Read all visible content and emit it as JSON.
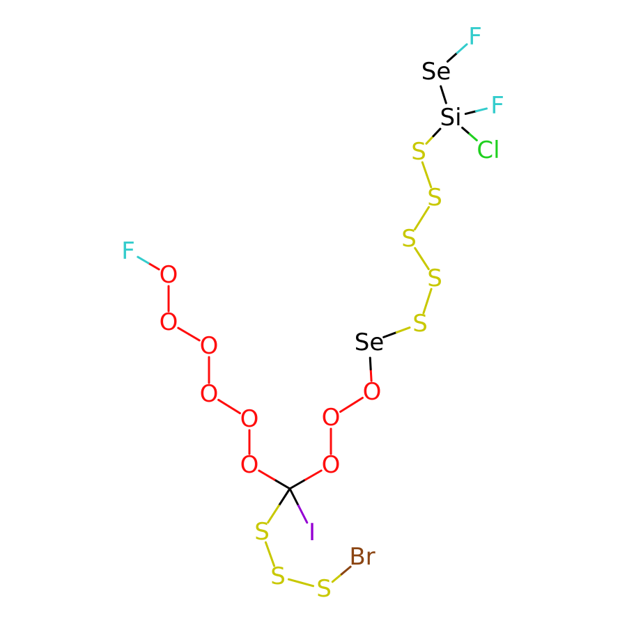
{
  "molecule": {
    "colors": {
      "C": "#000000",
      "O": "#ff0d0d",
      "S": "#c8c800",
      "Se": "#000000",
      "Si": "#000000",
      "F": "#33cccc",
      "Cl": "#1fd01f",
      "Br": "#8b4513",
      "I": "#9400d3"
    },
    "atoms": [
      {
        "id": "C1",
        "el": "C",
        "label": ""
      },
      {
        "id": "O1",
        "el": "O",
        "label": "O"
      },
      {
        "id": "O2",
        "el": "O",
        "label": "O"
      },
      {
        "id": "O3",
        "el": "O",
        "label": "O"
      },
      {
        "id": "O4",
        "el": "O",
        "label": "O"
      },
      {
        "id": "O5",
        "el": "O",
        "label": "O"
      },
      {
        "id": "O6",
        "el": "O",
        "label": "O"
      },
      {
        "id": "F1",
        "el": "F",
        "label": "F"
      },
      {
        "id": "O7",
        "el": "O",
        "label": "O"
      },
      {
        "id": "O8",
        "el": "O",
        "label": "O"
      },
      {
        "id": "O9",
        "el": "O",
        "label": "O"
      },
      {
        "id": "Se1",
        "el": "Se",
        "label": "Se"
      },
      {
        "id": "S1",
        "el": "S",
        "label": "S"
      },
      {
        "id": "S2",
        "el": "S",
        "label": "S"
      },
      {
        "id": "S3",
        "el": "S",
        "label": "S"
      },
      {
        "id": "S4",
        "el": "S",
        "label": "S"
      },
      {
        "id": "S5",
        "el": "S",
        "label": "S"
      },
      {
        "id": "Si1",
        "el": "Si",
        "label": "Si"
      },
      {
        "id": "F2",
        "el": "F",
        "label": "F"
      },
      {
        "id": "Cl1",
        "el": "Cl",
        "label": "Cl"
      },
      {
        "id": "Se2",
        "el": "Se",
        "label": "Se"
      },
      {
        "id": "F3",
        "el": "F",
        "label": "F"
      },
      {
        "id": "I1",
        "el": "I",
        "label": "I"
      },
      {
        "id": "S6",
        "el": "S",
        "label": "S"
      },
      {
        "id": "S7",
        "el": "S",
        "label": "S"
      },
      {
        "id": "S8",
        "el": "S",
        "label": "S"
      },
      {
        "id": "Br1",
        "el": "Br",
        "label": "Br"
      }
    ],
    "bonds": [
      [
        "C1",
        "O1"
      ],
      [
        "O1",
        "O2"
      ],
      [
        "O2",
        "O3"
      ],
      [
        "O3",
        "O4"
      ],
      [
        "O4",
        "O5"
      ],
      [
        "O5",
        "O6"
      ],
      [
        "O6",
        "F1"
      ],
      [
        "C1",
        "O7"
      ],
      [
        "O7",
        "O8"
      ],
      [
        "O8",
        "O9"
      ],
      [
        "O9",
        "Se1"
      ],
      [
        "Se1",
        "S1"
      ],
      [
        "S1",
        "S2"
      ],
      [
        "S2",
        "S3"
      ],
      [
        "S3",
        "S4"
      ],
      [
        "S4",
        "S5"
      ],
      [
        "S5",
        "Si1"
      ],
      [
        "Si1",
        "F2"
      ],
      [
        "Si1",
        "Cl1"
      ],
      [
        "Si1",
        "Se2"
      ],
      [
        "Se2",
        "F3"
      ],
      [
        "C1",
        "I1"
      ],
      [
        "C1",
        "S6"
      ],
      [
        "S6",
        "S7"
      ],
      [
        "S7",
        "S8"
      ],
      [
        "S8",
        "Br1"
      ]
    ]
  }
}
